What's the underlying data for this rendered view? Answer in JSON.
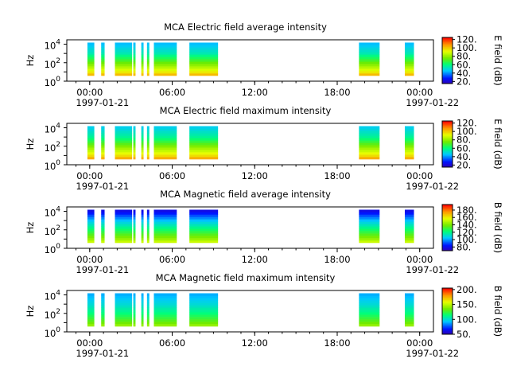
{
  "figure": {
    "panels": [
      {
        "id": "e-avg",
        "title": "MCA  Electric field average intensity",
        "ylabel": "Hz",
        "cbar_label": "E field (dB)",
        "cbar_ticks": [
          "20.",
          "40.",
          "60.",
          "80.",
          "100.",
          "120."
        ],
        "ytick_labels": [
          {
            "base": "10",
            "exp": "0"
          },
          {
            "base": "10",
            "exp": "2"
          },
          {
            "base": "10",
            "exp": "4"
          }
        ],
        "xtick_times": [
          "00:00",
          "06:00",
          "12:00",
          "18:00",
          "00:00"
        ],
        "xtick_dates": [
          "1997-01-21",
          "1997-01-22"
        ]
      },
      {
        "id": "e-max",
        "title": "MCA  Electric field maximum intensity",
        "ylabel": "Hz",
        "cbar_label": "E field (dB)",
        "cbar_ticks": [
          "20.",
          "40.",
          "60.",
          "80.",
          "100.",
          "120."
        ],
        "ytick_labels": [
          {
            "base": "10",
            "exp": "0"
          },
          {
            "base": "10",
            "exp": "2"
          },
          {
            "base": "10",
            "exp": "4"
          }
        ],
        "xtick_times": [
          "00:00",
          "06:00",
          "12:00",
          "18:00",
          "00:00"
        ],
        "xtick_dates": [
          "1997-01-21",
          "1997-01-22"
        ]
      },
      {
        "id": "b-avg",
        "title": "MCA  Magnetic field average intensity",
        "ylabel": "Hz",
        "cbar_label": "B field (dB)",
        "cbar_ticks": [
          "80.",
          "100.",
          "120.",
          "140.",
          "160.",
          "180."
        ],
        "ytick_labels": [
          {
            "base": "10",
            "exp": "0"
          },
          {
            "base": "10",
            "exp": "2"
          },
          {
            "base": "10",
            "exp": "4"
          }
        ],
        "xtick_times": [
          "00:00",
          "06:00",
          "12:00",
          "18:00",
          "00:00"
        ],
        "xtick_dates": [
          "1997-01-21",
          "1997-01-22"
        ]
      },
      {
        "id": "b-max",
        "title": "MCA  Magnetic field maximum intensity",
        "ylabel": "Hz",
        "cbar_label": "B field (dB)",
        "cbar_ticks": [
          "50.",
          "100.",
          "150.",
          "200."
        ],
        "ytick_labels": [
          {
            "base": "10",
            "exp": "0"
          },
          {
            "base": "10",
            "exp": "2"
          },
          {
            "base": "10",
            "exp": "4"
          }
        ],
        "xtick_times": [
          "00:00",
          "06:00",
          "12:00",
          "18:00",
          "00:00"
        ],
        "xtick_dates": [
          "1997-01-21",
          "1997-01-22"
        ]
      }
    ]
  },
  "chart_data": [
    {
      "type": "heatmap",
      "title": "MCA  Electric field average intensity",
      "ylabel": "Hz",
      "colorbar_label": "E field (dB)",
      "colorbar_range": [
        15,
        125
      ],
      "colormap": "rainbow",
      "y_scale": "log",
      "ylim": [
        1,
        30000
      ],
      "xlim": [
        "1997-01-20T22:20",
        "1997-01-22T01:00"
      ],
      "data_intervals": [
        [
          "1997-01-20T23:50",
          "1997-01-21T00:20"
        ],
        [
          "1997-01-21T00:50",
          "1997-01-21T01:05"
        ],
        [
          "1997-01-21T01:50",
          "1997-01-21T03:05"
        ],
        [
          "1997-01-21T03:10",
          "1997-01-21T03:20"
        ],
        [
          "1997-01-21T03:45",
          "1997-01-21T03:55"
        ],
        [
          "1997-01-21T04:10",
          "1997-01-21T04:20"
        ],
        [
          "1997-01-21T04:40",
          "1997-01-21T06:20"
        ],
        [
          "1997-01-21T07:15",
          "1997-01-21T09:20"
        ],
        [
          "1997-01-21T19:35",
          "1997-01-21T21:05"
        ],
        [
          "1997-01-21T22:55",
          "1997-01-21T23:35"
        ]
      ],
      "intensity_by_frequency_dB": {
        "freq_hz": [
          3,
          10,
          100,
          1000,
          10000
        ],
        "dB": [
          110,
          95,
          75,
          55,
          45
        ]
      }
    },
    {
      "type": "heatmap",
      "title": "MCA  Electric field maximum intensity",
      "ylabel": "Hz",
      "colorbar_label": "E field (dB)",
      "colorbar_range": [
        15,
        125
      ],
      "colormap": "rainbow",
      "y_scale": "log",
      "ylim": [
        1,
        30000
      ],
      "xlim": [
        "1997-01-20T22:20",
        "1997-01-22T01:00"
      ],
      "data_intervals": [
        [
          "1997-01-20T23:50",
          "1997-01-21T00:20"
        ],
        [
          "1997-01-21T00:50",
          "1997-01-21T01:05"
        ],
        [
          "1997-01-21T01:50",
          "1997-01-21T03:05"
        ],
        [
          "1997-01-21T03:10",
          "1997-01-21T03:20"
        ],
        [
          "1997-01-21T03:45",
          "1997-01-21T03:55"
        ],
        [
          "1997-01-21T04:10",
          "1997-01-21T04:20"
        ],
        [
          "1997-01-21T04:40",
          "1997-01-21T06:20"
        ],
        [
          "1997-01-21T07:15",
          "1997-01-21T09:20"
        ],
        [
          "1997-01-21T19:35",
          "1997-01-21T21:05"
        ],
        [
          "1997-01-21T22:55",
          "1997-01-21T23:35"
        ]
      ],
      "intensity_by_frequency_dB": {
        "freq_hz": [
          3,
          10,
          100,
          1000,
          10000
        ],
        "dB": [
          112,
          97,
          78,
          58,
          48
        ]
      }
    },
    {
      "type": "heatmap",
      "title": "MCA  Magnetic field average intensity",
      "ylabel": "Hz",
      "colorbar_label": "B field (dB)",
      "colorbar_range": [
        70,
        195
      ],
      "colormap": "rainbow",
      "y_scale": "log",
      "ylim": [
        1,
        30000
      ],
      "xlim": [
        "1997-01-20T22:20",
        "1997-01-22T01:00"
      ],
      "data_intervals": [
        [
          "1997-01-20T23:50",
          "1997-01-21T00:20"
        ],
        [
          "1997-01-21T00:50",
          "1997-01-21T01:05"
        ],
        [
          "1997-01-21T01:50",
          "1997-01-21T03:05"
        ],
        [
          "1997-01-21T03:10",
          "1997-01-21T03:20"
        ],
        [
          "1997-01-21T03:45",
          "1997-01-21T03:55"
        ],
        [
          "1997-01-21T04:10",
          "1997-01-21T04:20"
        ],
        [
          "1997-01-21T04:40",
          "1997-01-21T06:20"
        ],
        [
          "1997-01-21T07:15",
          "1997-01-21T09:20"
        ],
        [
          "1997-01-21T19:35",
          "1997-01-21T21:05"
        ],
        [
          "1997-01-21T22:55",
          "1997-01-21T23:35"
        ]
      ],
      "intensity_by_frequency_dB": {
        "freq_hz": [
          3,
          10,
          100,
          1000,
          10000
        ],
        "dB": [
          160,
          145,
          125,
          105,
          80
        ]
      }
    },
    {
      "type": "heatmap",
      "title": "MCA  Magnetic field maximum intensity",
      "ylabel": "Hz",
      "colorbar_label": "B field (dB)",
      "colorbar_range": [
        50,
        205
      ],
      "colormap": "rainbow",
      "y_scale": "log",
      "ylim": [
        1,
        30000
      ],
      "xlim": [
        "1997-01-20T22:20",
        "1997-01-22T01:00"
      ],
      "data_intervals": [
        [
          "1997-01-20T23:50",
          "1997-01-21T00:20"
        ],
        [
          "1997-01-21T00:50",
          "1997-01-21T01:05"
        ],
        [
          "1997-01-21T01:50",
          "1997-01-21T03:05"
        ],
        [
          "1997-01-21T03:10",
          "1997-01-21T03:20"
        ],
        [
          "1997-01-21T03:45",
          "1997-01-21T03:55"
        ],
        [
          "1997-01-21T04:10",
          "1997-01-21T04:20"
        ],
        [
          "1997-01-21T04:40",
          "1997-01-21T06:20"
        ],
        [
          "1997-01-21T07:15",
          "1997-01-21T09:20"
        ],
        [
          "1997-01-21T19:35",
          "1997-01-21T21:05"
        ],
        [
          "1997-01-21T22:55",
          "1997-01-21T23:35"
        ]
      ],
      "intensity_by_frequency_dB": {
        "freq_hz": [
          3,
          10,
          100,
          1000,
          10000
        ],
        "dB": [
          150,
          135,
          115,
          100,
          90
        ]
      }
    }
  ]
}
